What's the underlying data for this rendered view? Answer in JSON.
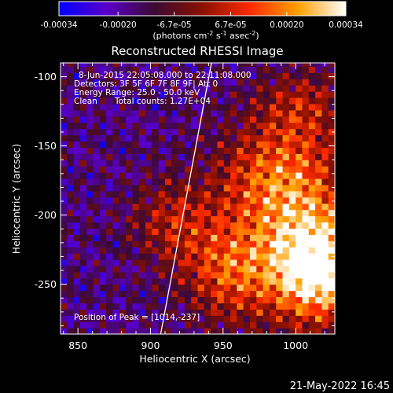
{
  "chart_data": {
    "type": "heatmap",
    "title": "Reconstructed RHESSI Image",
    "xlabel": "Heliocentric X (arcsec)",
    "ylabel": "Heliocentric Y (arcsec)",
    "xlim": [
      838,
      1027
    ],
    "ylim": [
      -286,
      -90
    ],
    "x_ticks": [
      850,
      900,
      950,
      1000
    ],
    "x_tick_labels": [
      "850",
      "900",
      "950",
      "1000"
    ],
    "y_ticks": [
      -100,
      -150,
      -200,
      -250
    ],
    "y_tick_labels": [
      "-100",
      "-150",
      "-200",
      "-250"
    ],
    "colorbar": {
      "range": [
        -0.00034,
        0.00034
      ],
      "ticks": [
        -0.00034,
        -0.0002,
        -6.7e-05,
        6.7e-05,
        0.0002,
        0.00034
      ],
      "tick_labels": [
        "-0.00034",
        "-0.00020",
        "-6.7e-05",
        "6.7e-05",
        "0.00020",
        "0.00034"
      ],
      "units": {
        "pre": "(photons cm",
        "e1": "-2",
        "mid1": " s",
        "e2": "-1",
        "mid2": " asec",
        "e3": "-2",
        "post": ")"
      },
      "colormap": [
        "#0000ff",
        "#5a00c8",
        "#3c0a32",
        "#8a1000",
        "#ff2a00",
        "#ffa000",
        "#ffffff"
      ]
    },
    "annotations": {
      "line1": "8-Jun-2015 22:05:08.000 to 22:11:08.000",
      "line2": "Detectors: 3F 5F 6F 7F 8F 9F| Att 0",
      "line3": "Energy Range: 25.0 - 50.0 keV",
      "line4_method": "Clean",
      "line4_counts": "Total counts: 1.27E+04",
      "peak": "Position of Peak = [1014,-237]"
    },
    "peak": {
      "x": 1014,
      "y": -237
    },
    "limb_line": {
      "x_top": 942,
      "y_top": -90,
      "x_bottom": 907,
      "y_bottom": -286
    },
    "emission_model": {
      "background": -0.00016,
      "sources": [
        {
          "x": 1014,
          "y": -237,
          "sx": 24,
          "sy": 28,
          "amp": 0.00058
        },
        {
          "x": 990,
          "y": -175,
          "sx": 30,
          "sy": 30,
          "amp": 0.00034
        },
        {
          "x": 955,
          "y": -240,
          "sx": 22,
          "sy": 26,
          "amp": 0.00028
        },
        {
          "x": 915,
          "y": -205,
          "sx": 20,
          "sy": 22,
          "amp": 0.00018
        },
        {
          "x": 1005,
          "y": -120,
          "sx": 22,
          "sy": 18,
          "amp": 0.00016
        }
      ]
    }
  },
  "footer": {
    "timestamp": "21-May-2022 16:45"
  }
}
